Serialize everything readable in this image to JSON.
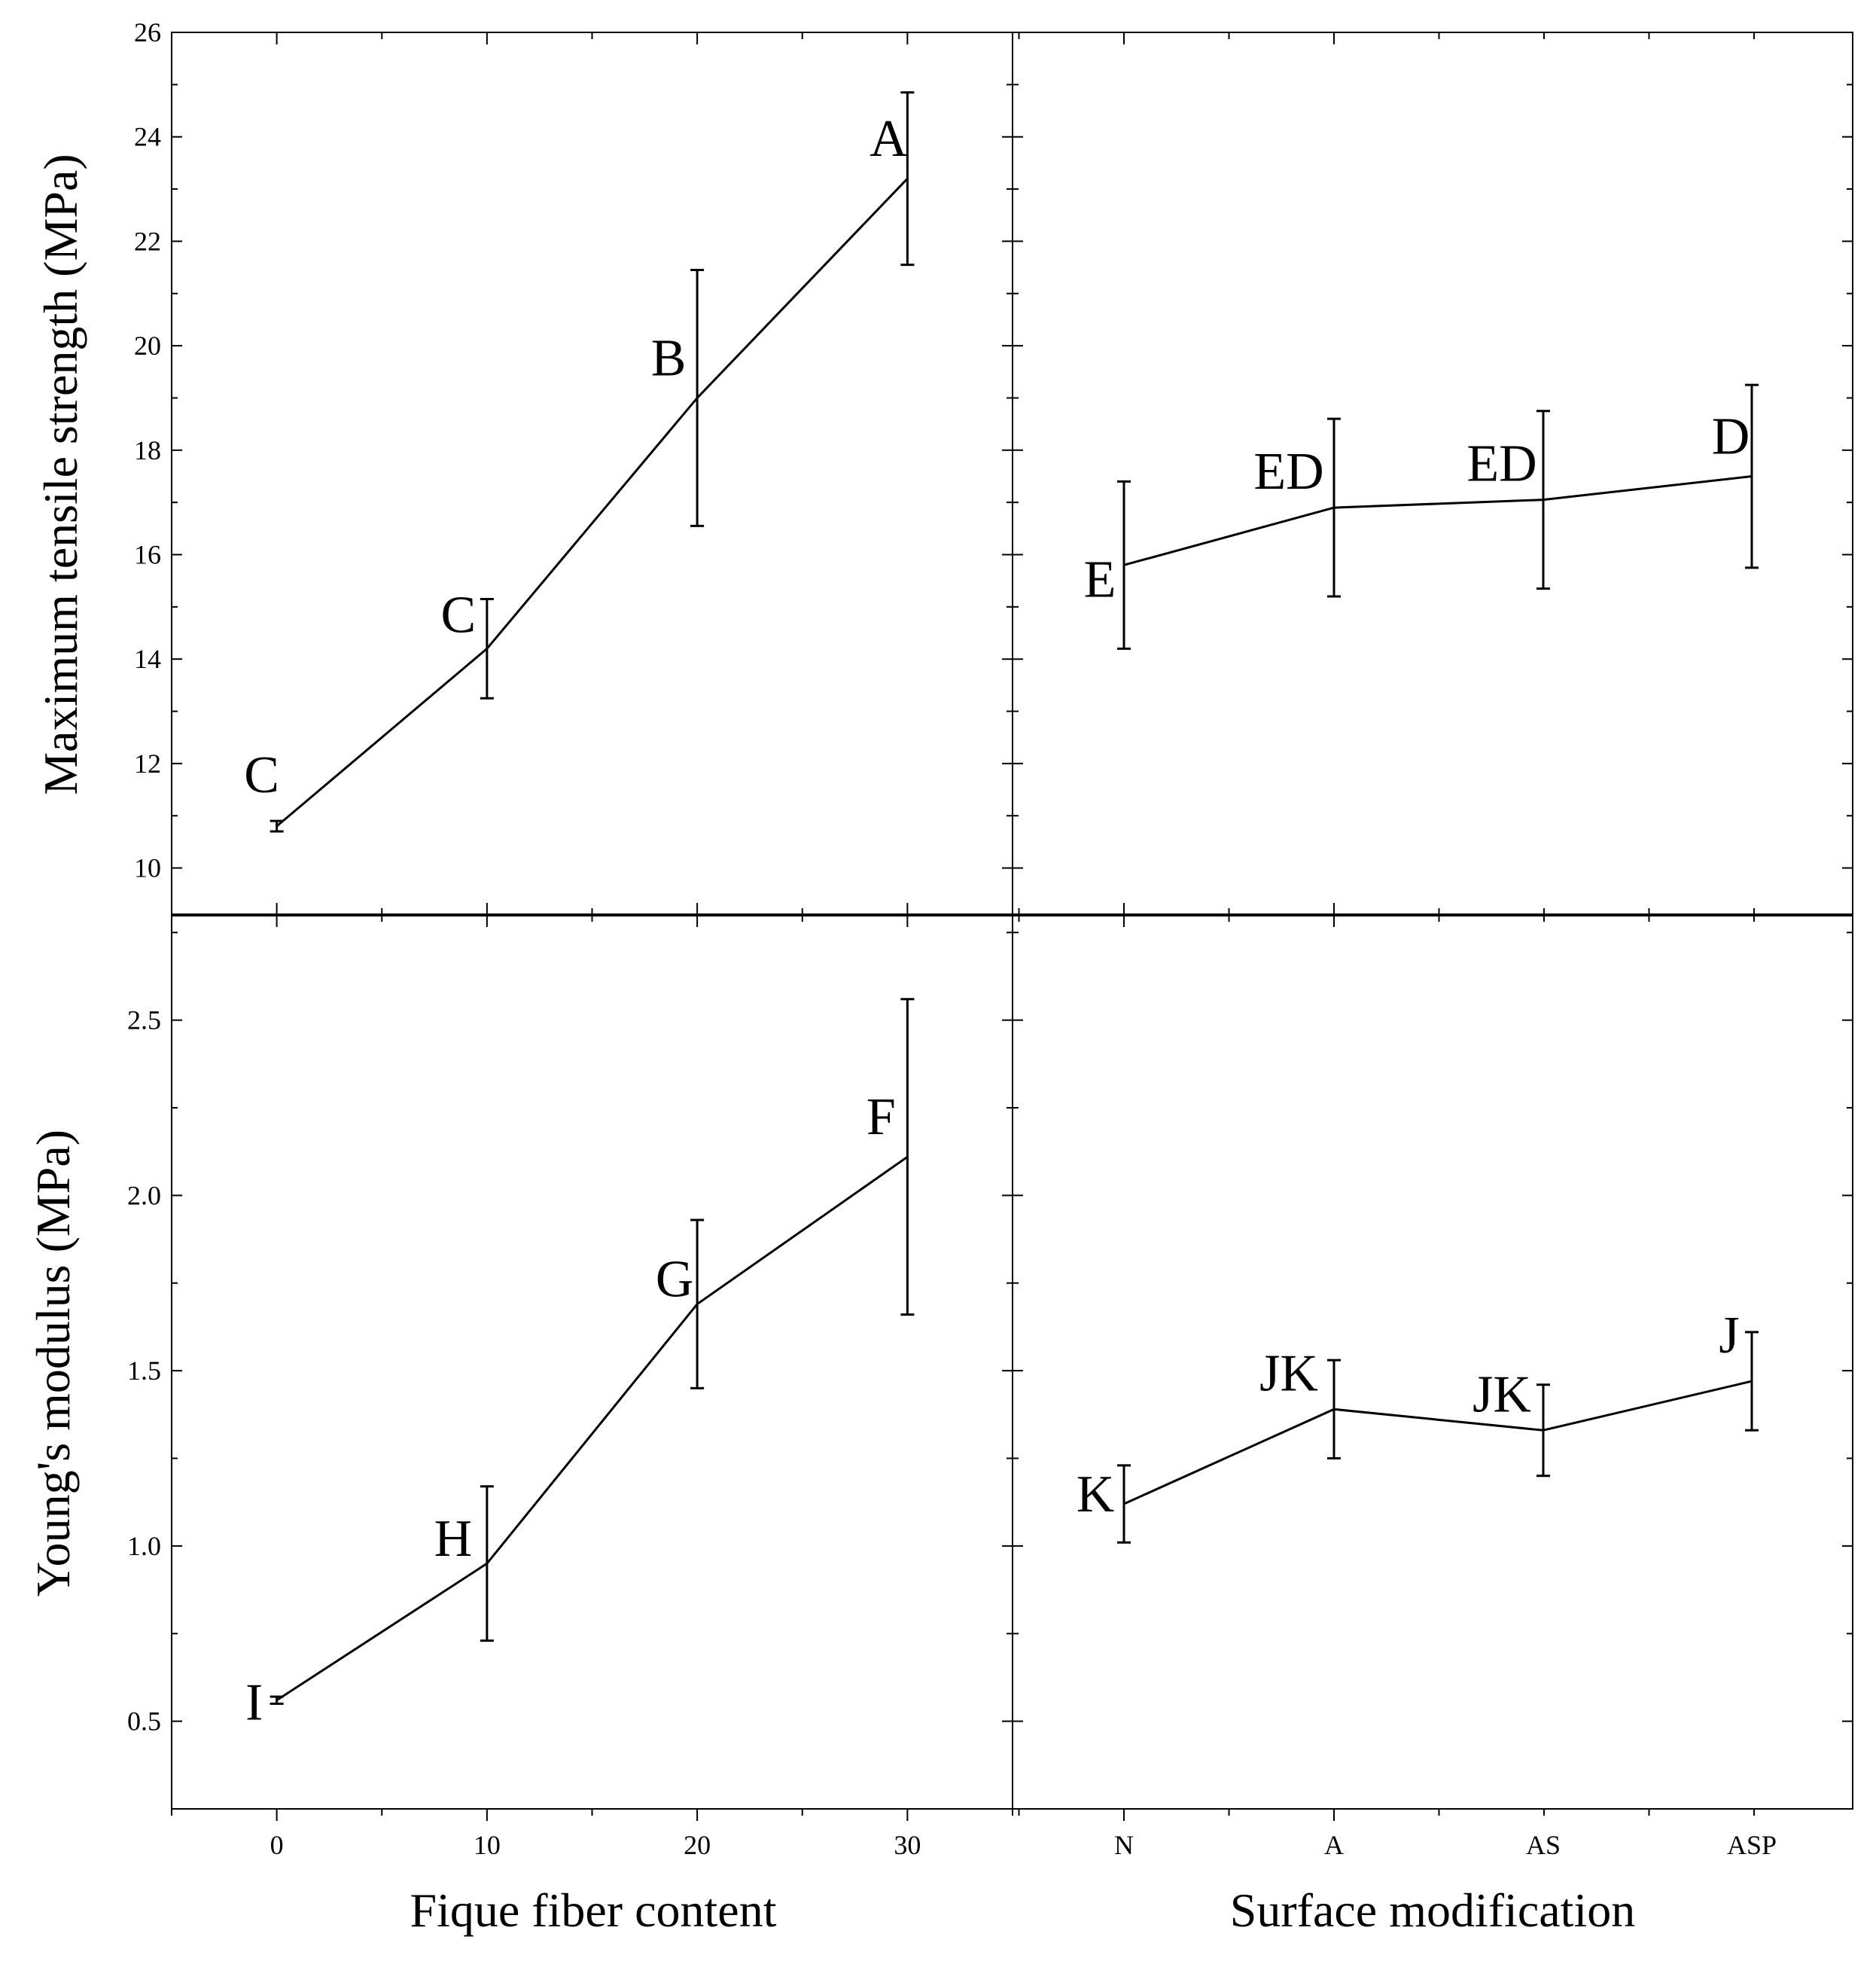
{
  "figure": {
    "xlabels": {
      "left": "Fique fiber content",
      "right": "Surface modification"
    }
  },
  "chart_data": [
    {
      "type": "line",
      "panel": "top-left",
      "title": "",
      "ylabel": "Maximum tensile strength (MPa)",
      "xlabel": "Fique fiber content",
      "ylim": [
        9.1,
        26
      ],
      "yticks": [
        10,
        12,
        14,
        16,
        18,
        20,
        22,
        24,
        26
      ],
      "ytick_labels": [
        "10",
        "12",
        "14",
        "16",
        "18",
        "20",
        "22",
        "24",
        "26"
      ],
      "x": [
        0,
        10,
        20,
        30
      ],
      "series": [
        {
          "name": "Maximum tensile strength",
          "values": [
            10.8,
            14.2,
            19.0,
            23.2
          ],
          "errors": [
            0.1,
            0.95,
            2.45,
            1.65
          ],
          "labels": [
            "C",
            "C",
            "B",
            "A"
          ]
        }
      ]
    },
    {
      "type": "line",
      "panel": "top-right",
      "title": "",
      "ylabel": "Maximum tensile strength (MPa)",
      "xlabel": "Surface modification",
      "ylim": [
        9.1,
        26
      ],
      "categories": [
        "N",
        "A",
        "AS",
        "ASP"
      ],
      "series": [
        {
          "name": "Maximum tensile strength",
          "values": [
            15.8,
            16.9,
            17.05,
            17.5
          ],
          "errors": [
            1.6,
            1.7,
            1.7,
            1.75
          ],
          "labels": [
            "E",
            "ED",
            "ED",
            "D"
          ]
        }
      ]
    },
    {
      "type": "line",
      "panel": "bottom-left",
      "title": "",
      "ylabel": "Young's modulus (MPa)",
      "xlabel": "Fique fiber content",
      "ylim": [
        0.25,
        2.8
      ],
      "yticks": [
        0.5,
        1.0,
        1.5,
        2.0,
        2.5
      ],
      "ytick_labels": [
        "0.5",
        "1.0",
        "1.5",
        "2.0",
        "2.5"
      ],
      "x": [
        0,
        10,
        20,
        30
      ],
      "xtick_labels": [
        "0",
        "10",
        "20",
        "30"
      ],
      "series": [
        {
          "name": "Young's modulus",
          "values": [
            0.56,
            0.95,
            1.69,
            2.11
          ],
          "errors": [
            0.01,
            0.22,
            0.24,
            0.45
          ],
          "labels": [
            "I",
            "H",
            "G",
            "F"
          ]
        }
      ]
    },
    {
      "type": "line",
      "panel": "bottom-right",
      "title": "",
      "ylabel": "Young's modulus (MPa)",
      "xlabel": "Surface modification",
      "ylim": [
        0.25,
        2.8
      ],
      "categories": [
        "N",
        "A",
        "AS",
        "ASP"
      ],
      "series": [
        {
          "name": "Young's modulus",
          "values": [
            1.12,
            1.39,
            1.33,
            1.47
          ],
          "errors": [
            0.11,
            0.14,
            0.13,
            0.14
          ],
          "labels": [
            "K",
            "JK",
            "JK",
            "J"
          ]
        }
      ]
    }
  ]
}
